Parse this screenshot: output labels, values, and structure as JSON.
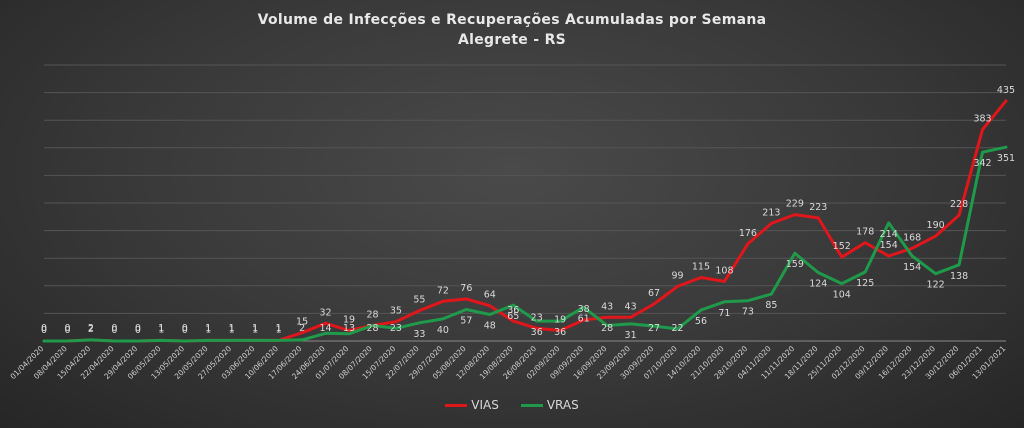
{
  "chart_data": {
    "type": "line",
    "title": "Volume de Infecções e Recuperações Acumuladas por Semana",
    "subtitle": "Alegrete - RS",
    "xlabel": "",
    "ylabel": "",
    "ylim": [
      0,
      500
    ],
    "grid": "horizontal",
    "legend_position": "bottom",
    "categories": [
      "01/04/2020",
      "08/04/2020",
      "15/04/2020",
      "22/04/2020",
      "29/04/2020",
      "06/05/2020",
      "13/05/2020",
      "20/05/2020",
      "27/05/2020",
      "03/06/2020",
      "10/06/2020",
      "17/06/2020",
      "24/06/2020",
      "01/07/2020",
      "08/07/2020",
      "15/07/2020",
      "22/07/2020",
      "29/07/2020",
      "05/08/2020",
      "12/08/2020",
      "19/08/2020",
      "26/08/2020",
      "02/09/2020",
      "09/09/2020",
      "16/09/2020",
      "23/09/2020",
      "30/09/2020",
      "07/10/2020",
      "14/10/2020",
      "21/10/2020",
      "28/10/2020",
      "04/11/2020",
      "11/11/2020",
      "18/11/2020",
      "25/11/2020",
      "02/12/2020",
      "09/12/2020",
      "16/12/2020",
      "23/12/2020",
      "30/12/2020",
      "06/01/2021",
      "13/01/2021"
    ],
    "series": [
      {
        "name": "VIAS",
        "color": "#e0161b",
        "values": [
          0,
          0,
          2,
          0,
          0,
          1,
          0,
          1,
          1,
          1,
          1,
          15,
          32,
          19,
          28,
          35,
          55,
          72,
          76,
          64,
          36,
          23,
          19,
          38,
          43,
          43,
          67,
          99,
          115,
          108,
          176,
          213,
          229,
          223,
          152,
          178,
          154,
          168,
          190,
          228,
          383,
          435
        ]
      },
      {
        "name": "VRAS",
        "color": "#1f9a4a",
        "values": [
          0,
          0,
          2,
          0,
          0,
          1,
          0,
          1,
          1,
          1,
          1,
          2,
          14,
          13,
          28,
          23,
          33,
          40,
          57,
          48,
          65,
          36,
          36,
          61,
          28,
          31,
          27,
          22,
          56,
          71,
          73,
          85,
          159,
          124,
          104,
          125,
          214,
          154,
          122,
          138,
          342,
          351
        ]
      }
    ]
  }
}
